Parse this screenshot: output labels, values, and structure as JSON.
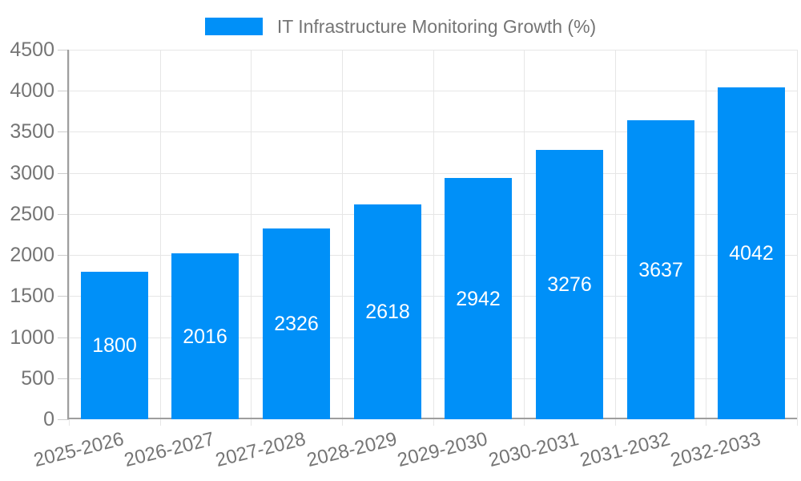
{
  "chart_data": {
    "type": "bar",
    "title": "IT Infrastructure Monitoring Growth (%)",
    "categories": [
      "2025-2026",
      "2026-2027",
      "2027-2028",
      "2028-2029",
      "2029-2030",
      "2030-2031",
      "2031-2032",
      "2032-2033"
    ],
    "values": [
      1800,
      2016,
      2326,
      2618,
      2942,
      3276,
      3637,
      4042
    ],
    "xlabel": "",
    "ylabel": "",
    "ylim": [
      0,
      4500
    ],
    "yticks": [
      0,
      500,
      1000,
      1500,
      2000,
      2500,
      3000,
      3500,
      4000,
      4500
    ],
    "grid": true,
    "legend_position": "top",
    "bar_value_labels": "inside-center",
    "x_label_rotation_deg": -14,
    "colors": {
      "bar": "#0090f8",
      "bar_label": "#ffffff",
      "axis_text": "#757575",
      "gridline": "#e6e6e6",
      "tick": "#cccccc",
      "axis_line": "#9e9e9e",
      "background": "#ffffff"
    }
  }
}
